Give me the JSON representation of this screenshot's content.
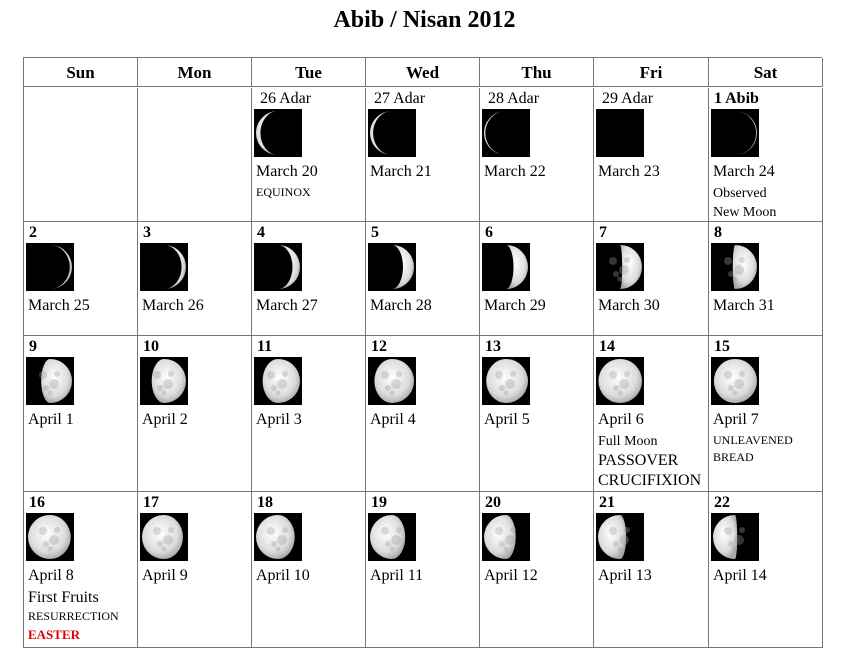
{
  "title": "Abib / Nisan 2012",
  "weekdays": [
    "Sun",
    "Mon",
    "Tue",
    "Wed",
    "Thu",
    "Fri",
    "Sat"
  ],
  "weeks": [
    [
      null,
      null,
      {
        "day": "26 Adar",
        "adar": true,
        "date": "March 20",
        "phase": -0.1,
        "notes": [
          {
            "text": "EQUINOX",
            "size": "small"
          }
        ]
      },
      {
        "day": "27 Adar",
        "adar": true,
        "date": "March 21",
        "phase": -0.07,
        "notes": []
      },
      {
        "day": "28 Adar",
        "adar": true,
        "date": "March 22",
        "phase": -0.03,
        "notes": []
      },
      {
        "day": "29 Adar",
        "adar": true,
        "date": "March 23",
        "phase": 0,
        "notes": []
      },
      {
        "day": "1 Abib",
        "date": "March 24",
        "phase": 0.02,
        "notes": [
          {
            "text": "Observed",
            "size": "normal"
          },
          {
            "text": "New Moon",
            "size": "normal"
          }
        ]
      }
    ],
    [
      {
        "day": "2",
        "date": "March 25",
        "phase": 0.05,
        "notes": []
      },
      {
        "day": "3",
        "date": "March 26",
        "phase": 0.1,
        "notes": []
      },
      {
        "day": "4",
        "date": "March 27",
        "phase": 0.17,
        "notes": []
      },
      {
        "day": "5",
        "date": "March 28",
        "phase": 0.25,
        "notes": []
      },
      {
        "day": "6",
        "date": "March 29",
        "phase": 0.33,
        "notes": []
      },
      {
        "day": "7",
        "date": "March 30",
        "phase": 0.45,
        "notes": []
      },
      {
        "day": "8",
        "date": "March 31",
        "phase": 0.55,
        "notes": []
      }
    ],
    [
      {
        "day": "9",
        "date": "April 1",
        "phase": 0.7,
        "notes": []
      },
      {
        "day": "10",
        "date": "April 2",
        "phase": 0.78,
        "notes": []
      },
      {
        "day": "11",
        "date": "April 3",
        "phase": 0.85,
        "notes": []
      },
      {
        "day": "12",
        "date": "April 4",
        "phase": 0.9,
        "notes": []
      },
      {
        "day": "13",
        "date": "April 5",
        "phase": 0.95,
        "notes": []
      },
      {
        "day": "14",
        "date": "April 6",
        "phase": 0.99,
        "notes": [
          {
            "text": "Full Moon",
            "size": "normal"
          },
          {
            "text": "PASSOVER",
            "size": "big"
          },
          {
            "text": "CRUCIFIXION",
            "size": "big"
          }
        ]
      },
      {
        "day": "15",
        "date": "April 7",
        "phase": 0.98,
        "notes": [
          {
            "text": "UNLEAVENED",
            "size": "small"
          },
          {
            "text": "BREAD",
            "size": "small"
          }
        ]
      }
    ],
    [
      {
        "day": "16",
        "date": "April 8",
        "phase": -0.97,
        "notes": [
          {
            "text": "First Fruits",
            "size": "big"
          },
          {
            "text": "RESURRECTION",
            "size": "small"
          },
          {
            "text": "EASTER",
            "size": "red"
          }
        ]
      },
      {
        "day": "17",
        "date": "April 9",
        "phase": -0.93,
        "notes": []
      },
      {
        "day": "18",
        "date": "April 10",
        "phase": -0.88,
        "notes": []
      },
      {
        "day": "19",
        "date": "April 11",
        "phase": -0.8,
        "notes": []
      },
      {
        "day": "20",
        "date": "April 12",
        "phase": -0.72,
        "notes": []
      },
      {
        "day": "21",
        "date": "April 13",
        "phase": -0.64,
        "notes": []
      },
      {
        "day": "22",
        "date": "April 14",
        "phase": -0.55,
        "notes": []
      }
    ]
  ]
}
